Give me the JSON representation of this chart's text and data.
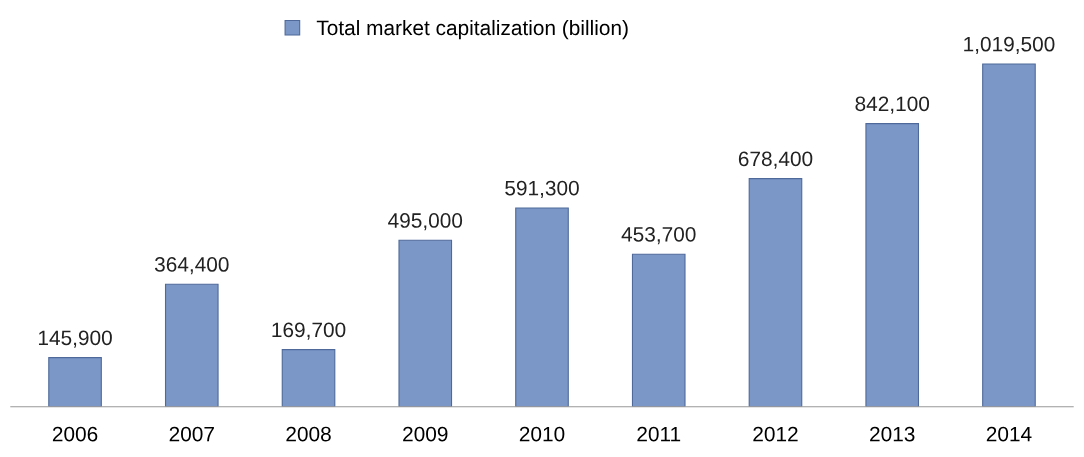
{
  "chart_data": {
    "type": "bar",
    "categories": [
      "2006",
      "2007",
      "2008",
      "2009",
      "2010",
      "2011",
      "2012",
      "2013",
      "2014"
    ],
    "series": [
      {
        "name": "Total market capitalization (billion)",
        "color": "#7b97c8",
        "values": [
          145900,
          364400,
          169700,
          495000,
          591300,
          453700,
          678400,
          842100,
          1019500
        ],
        "value_labels": [
          "145,900",
          "364,400",
          "169,700",
          "495,000",
          "591,300",
          "453,700",
          "678,400",
          "842,100",
          "1,019,500"
        ]
      }
    ],
    "legend": "top",
    "grid": false,
    "tick_labels": "x"
  }
}
